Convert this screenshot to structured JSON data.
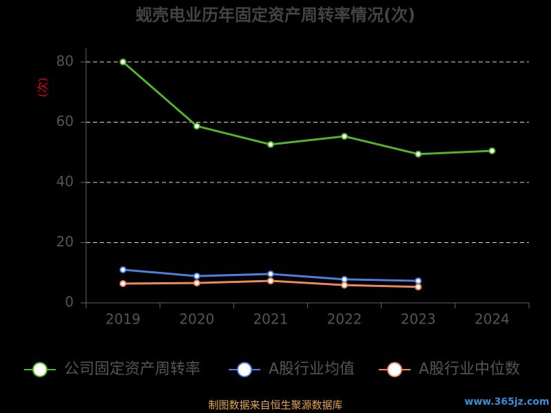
{
  "chart_data": {
    "type": "line",
    "title": "蚬壳电业历年固定资产周转率情况(次)",
    "y_label": "(次)",
    "categories": [
      "2019",
      "2020",
      "2021",
      "2022",
      "2023",
      "2024"
    ],
    "series": [
      {
        "name": "公司固定资产周转率",
        "color": "#52b526",
        "values": [
          80.0,
          58.7,
          52.6,
          55.3,
          49.4,
          50.5
        ]
      },
      {
        "name": "A股行业均值",
        "color": "#4f7fe0",
        "values": [
          11.0,
          8.9,
          9.6,
          7.8,
          7.3,
          null
        ]
      },
      {
        "name": "A股行业中位数",
        "color": "#f08a5d",
        "values": [
          6.4,
          6.6,
          7.3,
          5.9,
          5.3,
          null
        ]
      }
    ],
    "ylim": [
      0,
      80
    ],
    "yticks": [
      0,
      20,
      40,
      60,
      80
    ],
    "grid": true,
    "source": "制图数据来自恒生聚源数据库",
    "watermark": "www.365jz.com"
  }
}
